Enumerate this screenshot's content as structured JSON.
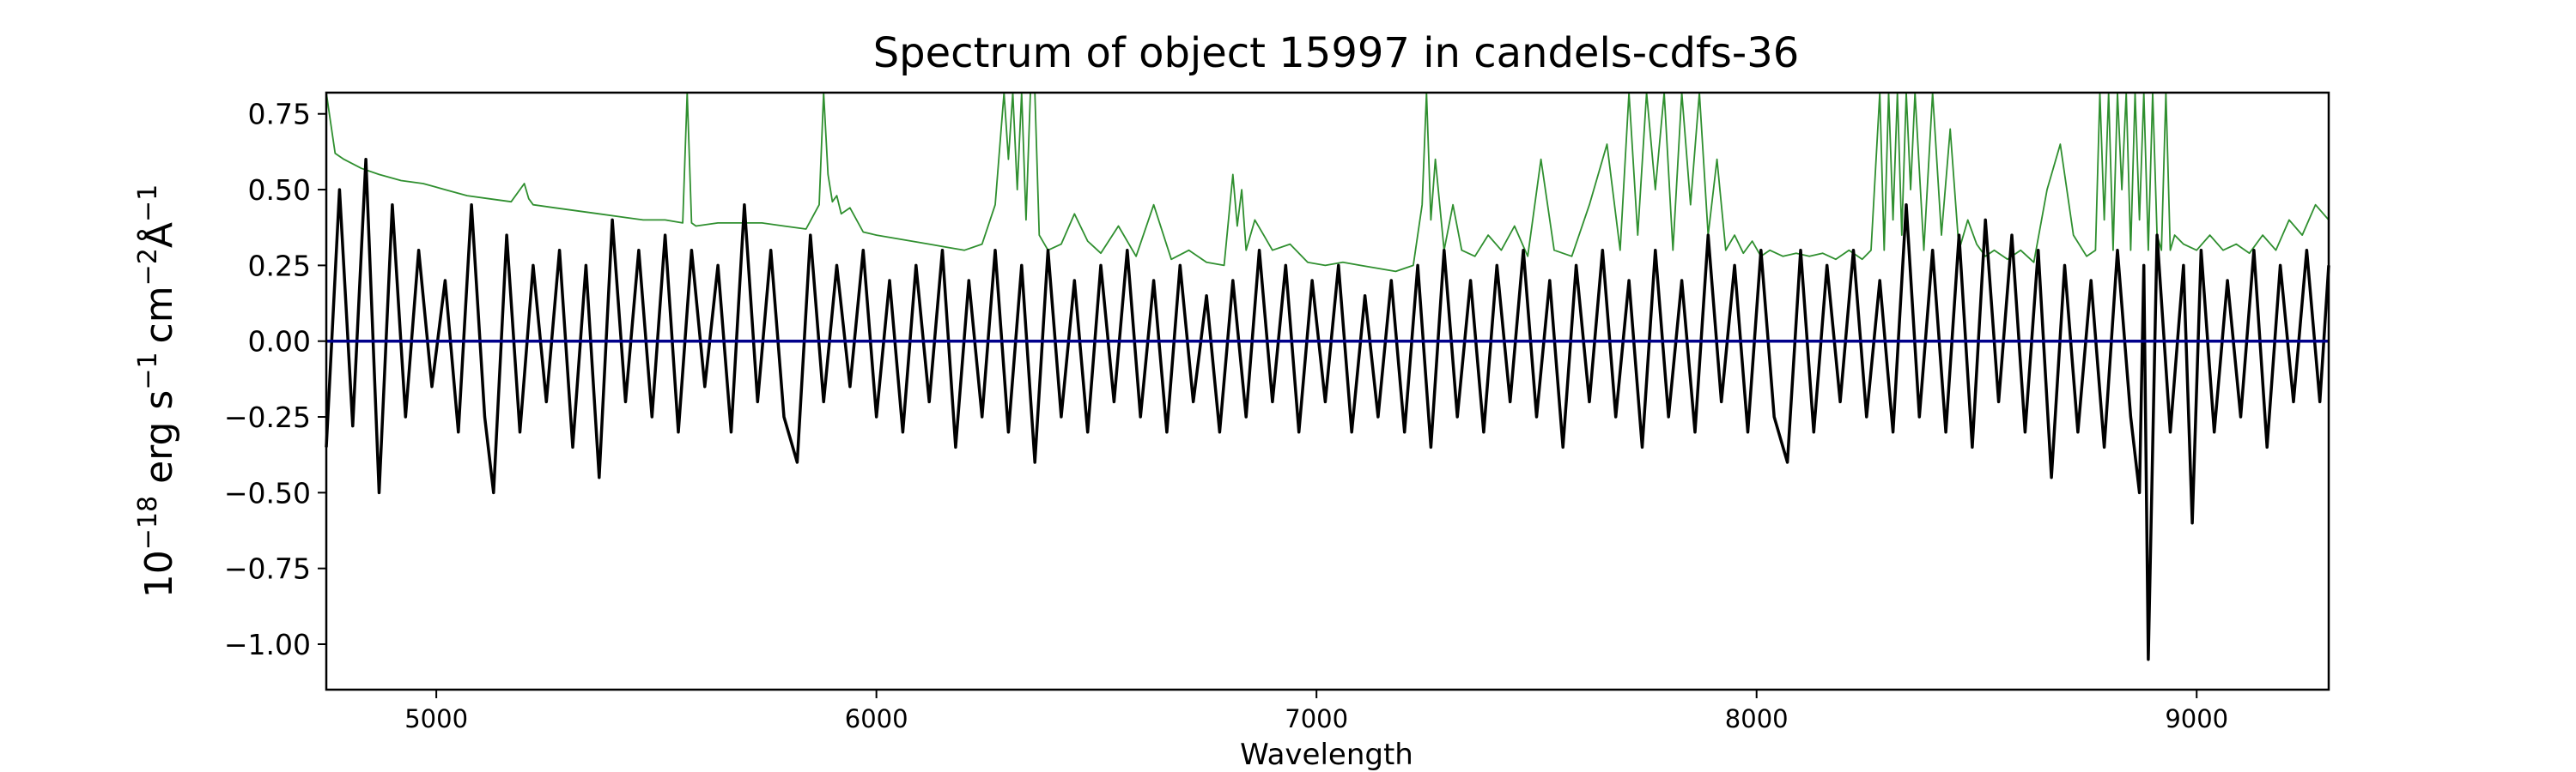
{
  "chart_data": {
    "type": "line",
    "title": "Spectrum of object 15997 in candels-cdfs-36",
    "xlabel": "Wavelength",
    "ylabel_parts": {
      "base": "10",
      "exp": "−18",
      "erg": " erg s",
      "s_exp": "−1",
      "cm": "cm",
      "cm_exp": "−2",
      "ang": "Å",
      "ang_exp": "−1"
    },
    "xlim": [
      4750,
      9300
    ],
    "ylim": [
      -1.15,
      0.82
    ],
    "x_ticks": [
      5000,
      6000,
      7000,
      8000,
      9000
    ],
    "x_tick_labels": [
      "5000",
      "6000",
      "7000",
      "8000",
      "9000"
    ],
    "y_ticks": [
      -1.0,
      -0.75,
      -0.5,
      -0.25,
      0.0,
      0.25,
      0.5,
      0.75
    ],
    "y_tick_labels": [
      "−1.00",
      "−0.75",
      "−0.50",
      "−0.25",
      "0.00",
      "0.25",
      "0.50",
      "0.75"
    ],
    "grid": false,
    "series": [
      {
        "role": "flux",
        "color": "#000000",
        "x": [
          4750,
          4780,
          4810,
          4840,
          4870,
          4900,
          4930,
          4960,
          4990,
          5020,
          5050,
          5080,
          5110,
          5130,
          5160,
          5190,
          5220,
          5250,
          5280,
          5310,
          5340,
          5370,
          5400,
          5430,
          5460,
          5490,
          5520,
          5550,
          5580,
          5610,
          5640,
          5670,
          5700,
          5730,
          5760,
          5790,
          5820,
          5850,
          5880,
          5910,
          5940,
          5970,
          6000,
          6030,
          6060,
          6090,
          6120,
          6150,
          6180,
          6210,
          6240,
          6270,
          6300,
          6330,
          6360,
          6390,
          6420,
          6450,
          6480,
          6510,
          6540,
          6570,
          6600,
          6630,
          6660,
          6690,
          6720,
          6750,
          6780,
          6810,
          6840,
          6870,
          6900,
          6930,
          6960,
          6990,
          7020,
          7050,
          7080,
          7110,
          7140,
          7170,
          7200,
          7230,
          7260,
          7290,
          7320,
          7350,
          7380,
          7410,
          7440,
          7470,
          7500,
          7530,
          7560,
          7590,
          7620,
          7650,
          7680,
          7710,
          7740,
          7770,
          7800,
          7830,
          7860,
          7890,
          7920,
          7950,
          7980,
          8010,
          8040,
          8070,
          8100,
          8130,
          8160,
          8190,
          8220,
          8250,
          8280,
          8310,
          8340,
          8370,
          8400,
          8430,
          8460,
          8490,
          8520,
          8550,
          8580,
          8610,
          8640,
          8670,
          8700,
          8730,
          8760,
          8790,
          8820,
          8850,
          8870,
          8880,
          8890,
          8910,
          8940,
          8970,
          8990,
          9010,
          9040,
          9070,
          9100,
          9130,
          9160,
          9190,
          9220,
          9250,
          9280,
          9300
        ],
        "y": [
          -0.35,
          0.5,
          -0.28,
          0.6,
          -0.5,
          0.45,
          -0.25,
          0.3,
          -0.15,
          0.2,
          -0.3,
          0.45,
          -0.25,
          -0.5,
          0.35,
          -0.3,
          0.25,
          -0.2,
          0.3,
          -0.35,
          0.25,
          -0.45,
          0.4,
          -0.2,
          0.3,
          -0.25,
          0.35,
          -0.3,
          0.3,
          -0.15,
          0.25,
          -0.3,
          0.45,
          -0.2,
          0.3,
          -0.25,
          -0.4,
          0.35,
          -0.2,
          0.25,
          -0.15,
          0.3,
          -0.25,
          0.2,
          -0.3,
          0.25,
          -0.2,
          0.3,
          -0.35,
          0.2,
          -0.25,
          0.3,
          -0.3,
          0.25,
          -0.4,
          0.3,
          -0.25,
          0.2,
          -0.3,
          0.25,
          -0.2,
          0.3,
          -0.25,
          0.2,
          -0.3,
          0.25,
          -0.2,
          0.15,
          -0.3,
          0.2,
          -0.25,
          0.3,
          -0.2,
          0.25,
          -0.3,
          0.2,
          -0.2,
          0.25,
          -0.3,
          0.15,
          -0.25,
          0.2,
          -0.3,
          0.25,
          -0.35,
          0.3,
          -0.25,
          0.2,
          -0.3,
          0.25,
          -0.2,
          0.3,
          -0.25,
          0.2,
          -0.35,
          0.25,
          -0.2,
          0.3,
          -0.25,
          0.2,
          -0.35,
          0.3,
          -0.25,
          0.2,
          -0.3,
          0.35,
          -0.2,
          0.25,
          -0.3,
          0.3,
          -0.25,
          -0.4,
          0.3,
          -0.3,
          0.25,
          -0.2,
          0.3,
          -0.25,
          0.2,
          -0.3,
          0.45,
          -0.25,
          0.3,
          -0.3,
          0.35,
          -0.35,
          0.4,
          -0.2,
          0.35,
          -0.3,
          0.3,
          -0.45,
          0.25,
          -0.3,
          0.2,
          -0.35,
          0.3,
          -0.25,
          -0.5,
          0.25,
          -1.05,
          0.35,
          -0.3,
          0.25,
          -0.6,
          0.3,
          -0.3,
          0.2,
          -0.25,
          0.3,
          -0.35,
          0.25,
          -0.2,
          0.3,
          -0.2,
          0.25
        ]
      },
      {
        "role": "error",
        "color": "#2f8f2f",
        "x": [
          4750,
          4760,
          4770,
          4790,
          4830,
          4870,
          4920,
          4970,
          5020,
          5070,
          5120,
          5170,
          5200,
          5210,
          5220,
          5270,
          5320,
          5370,
          5420,
          5470,
          5520,
          5560,
          5570,
          5580,
          5590,
          5640,
          5690,
          5740,
          5790,
          5840,
          5870,
          5880,
          5890,
          5900,
          5910,
          5920,
          5940,
          5970,
          6000,
          6040,
          6080,
          6120,
          6160,
          6200,
          6240,
          6270,
          6290,
          6300,
          6310,
          6320,
          6330,
          6340,
          6350,
          6360,
          6370,
          6390,
          6420,
          6450,
          6480,
          6510,
          6550,
          6590,
          6630,
          6670,
          6710,
          6750,
          6790,
          6810,
          6820,
          6830,
          6840,
          6860,
          6880,
          6900,
          6940,
          6980,
          7020,
          7060,
          7100,
          7140,
          7180,
          7220,
          7240,
          7250,
          7260,
          7270,
          7290,
          7310,
          7330,
          7360,
          7390,
          7420,
          7450,
          7480,
          7510,
          7540,
          7580,
          7620,
          7660,
          7690,
          7710,
          7730,
          7750,
          7770,
          7790,
          7810,
          7830,
          7850,
          7870,
          7890,
          7910,
          7930,
          7950,
          7970,
          7990,
          8010,
          8030,
          8060,
          8090,
          8120,
          8150,
          8180,
          8210,
          8240,
          8260,
          8280,
          8290,
          8300,
          8310,
          8320,
          8330,
          8340,
          8350,
          8360,
          8380,
          8400,
          8420,
          8440,
          8460,
          8480,
          8500,
          8520,
          8540,
          8570,
          8600,
          8630,
          8660,
          8690,
          8720,
          8750,
          8770,
          8780,
          8790,
          8800,
          8810,
          8820,
          8830,
          8840,
          8850,
          8860,
          8870,
          8880,
          8890,
          8900,
          8910,
          8920,
          8930,
          8940,
          8950,
          8970,
          9000,
          9030,
          9060,
          9090,
          9120,
          9150,
          9180,
          9210,
          9240,
          9270,
          9300
        ],
        "y": [
          0.82,
          0.72,
          0.62,
          0.6,
          0.57,
          0.55,
          0.53,
          0.52,
          0.5,
          0.48,
          0.47,
          0.46,
          0.52,
          0.47,
          0.45,
          0.44,
          0.43,
          0.42,
          0.41,
          0.4,
          0.4,
          0.39,
          0.82,
          0.39,
          0.38,
          0.39,
          0.39,
          0.39,
          0.38,
          0.37,
          0.45,
          0.82,
          0.55,
          0.46,
          0.48,
          0.42,
          0.44,
          0.36,
          0.35,
          0.34,
          0.33,
          0.32,
          0.31,
          0.3,
          0.32,
          0.45,
          0.82,
          0.6,
          0.82,
          0.5,
          0.82,
          0.4,
          0.82,
          0.82,
          0.35,
          0.3,
          0.32,
          0.42,
          0.33,
          0.29,
          0.38,
          0.28,
          0.45,
          0.27,
          0.3,
          0.26,
          0.25,
          0.55,
          0.38,
          0.5,
          0.3,
          0.4,
          0.35,
          0.3,
          0.32,
          0.26,
          0.25,
          0.26,
          0.25,
          0.24,
          0.23,
          0.25,
          0.45,
          0.82,
          0.4,
          0.6,
          0.3,
          0.45,
          0.3,
          0.28,
          0.35,
          0.3,
          0.38,
          0.28,
          0.6,
          0.3,
          0.28,
          0.45,
          0.65,
          0.3,
          0.82,
          0.35,
          0.82,
          0.5,
          0.82,
          0.3,
          0.82,
          0.45,
          0.82,
          0.35,
          0.6,
          0.3,
          0.35,
          0.29,
          0.33,
          0.28,
          0.3,
          0.28,
          0.29,
          0.28,
          0.29,
          0.27,
          0.3,
          0.27,
          0.3,
          0.82,
          0.3,
          0.82,
          0.4,
          0.82,
          0.35,
          0.82,
          0.5,
          0.82,
          0.3,
          0.82,
          0.35,
          0.7,
          0.3,
          0.4,
          0.32,
          0.28,
          0.3,
          0.27,
          0.3,
          0.26,
          0.5,
          0.65,
          0.35,
          0.28,
          0.3,
          0.82,
          0.4,
          0.82,
          0.3,
          0.82,
          0.5,
          0.82,
          0.3,
          0.82,
          0.4,
          0.82,
          0.3,
          0.82,
          0.35,
          0.3,
          0.82,
          0.3,
          0.35,
          0.32,
          0.3,
          0.35,
          0.3,
          0.32,
          0.29,
          0.35,
          0.3,
          0.4,
          0.35,
          0.45,
          0.4
        ]
      },
      {
        "role": "zero",
        "color": "#00008b",
        "x": [
          4750,
          9300
        ],
        "y": [
          0.0,
          0.0
        ]
      }
    ]
  }
}
